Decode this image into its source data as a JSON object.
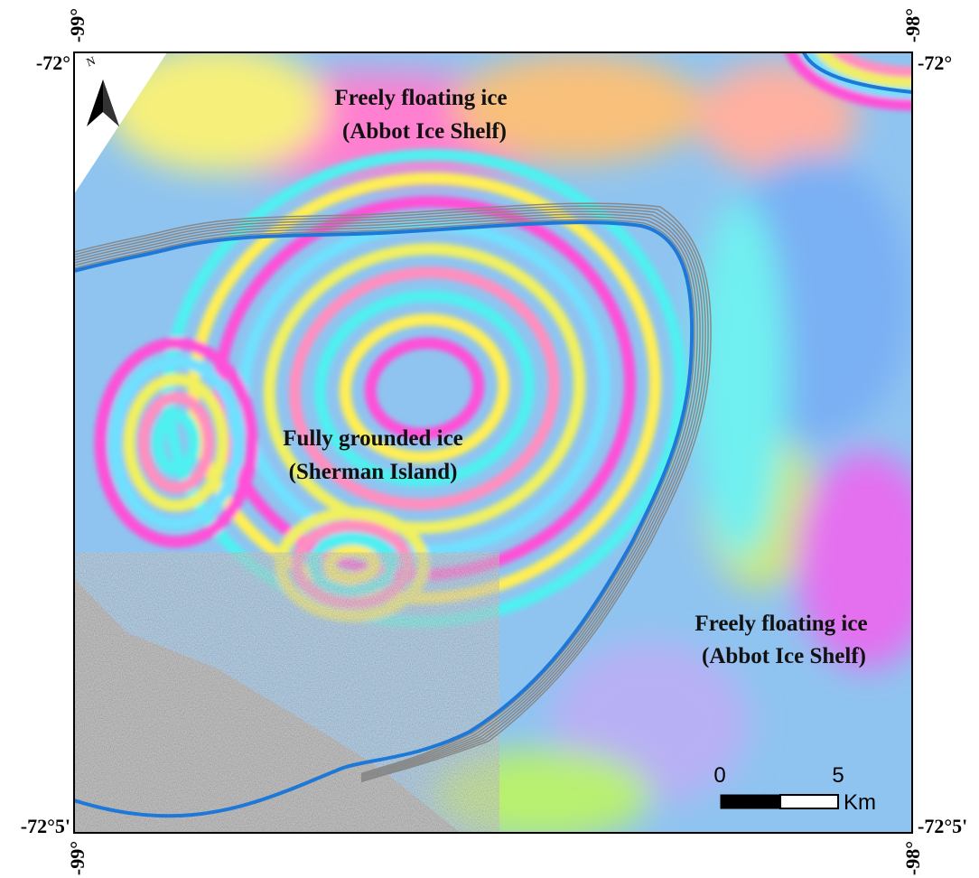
{
  "map": {
    "longitude_labels": {
      "top_left": "-99°",
      "top_right": "-98°",
      "bottom_left": "-99°",
      "bottom_right": "-98°"
    },
    "latitude_labels": {
      "top_left": "-72°",
      "top_right": "-72°",
      "bottom_left": "-72°5'",
      "bottom_right": "-72°5'"
    },
    "annotations": [
      {
        "lines": [
          "Freely floating ice",
          "(Abbot Ice Shelf)"
        ]
      },
      {
        "lines": [
          "Fully grounded ice",
          "(Sherman Island)"
        ]
      },
      {
        "lines": [
          "Freely floating ice",
          "(Abbot Ice Shelf)"
        ]
      }
    ],
    "scale_bar": {
      "labels": [
        "0",
        "5"
      ],
      "unit": "Km"
    },
    "north_arrow": "N"
  }
}
